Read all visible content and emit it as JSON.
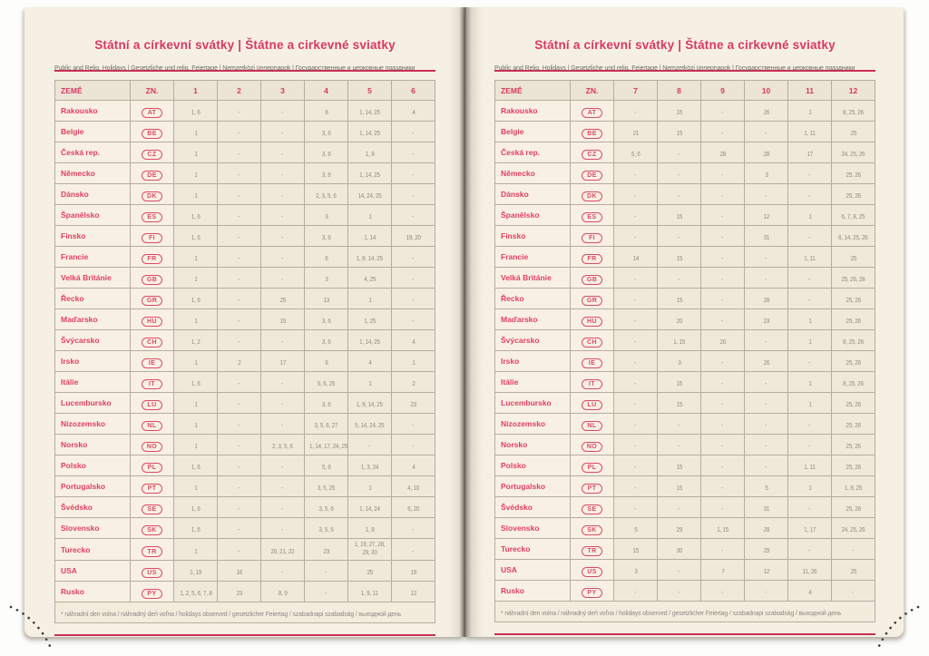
{
  "shared": {
    "title": "Státní a církevní svátky | Štátne a cirkevné sviatky",
    "subtitle": "Public and Relig. Holidays | Gesetzliche und relig. Feiertage | Nemzetközi ünnepnapok | Государственные и церковные праздники",
    "columns": {
      "country": "ZEMĚ",
      "code": "ZN."
    },
    "footnote": "* náhradní den volna / náhradný deň voľna / holidays observed / gesetzlicher Feiertag / szabadnapi szabadság / выходной день"
  },
  "colors": {
    "accent_crimson": "#d93862",
    "rule_red": "#c92f55",
    "page_cream": "#f6f0e4",
    "cell_beige": "#f0e9da",
    "border_gray": "#b6aca0",
    "value_gray": "#8f897f",
    "corner_dots": "#3c3b38"
  },
  "left_page": {
    "months": [
      "1",
      "2",
      "3",
      "4",
      "5",
      "6"
    ],
    "rows": [
      {
        "country": "Rakousko",
        "code": "AT",
        "values": [
          "1, 6",
          "-",
          "-",
          "6",
          "1, 14, 25",
          "4"
        ]
      },
      {
        "country": "Belgie",
        "code": "BE",
        "values": [
          "1",
          "-",
          "-",
          "3, 6",
          "1, 14, 25",
          "-"
        ]
      },
      {
        "country": "Česká rep.",
        "code": "CZ",
        "values": [
          "1",
          "-",
          "-",
          "3, 6",
          "1, 8",
          "-"
        ]
      },
      {
        "country": "Německo",
        "code": "DE",
        "values": [
          "1",
          "-",
          "-",
          "3, 6",
          "1, 14, 25",
          "-"
        ]
      },
      {
        "country": "Dánsko",
        "code": "DK",
        "values": [
          "1",
          "-",
          "-",
          "2, 3, 5, 6",
          "14, 24, 25",
          "-"
        ]
      },
      {
        "country": "Španělsko",
        "code": "ES",
        "values": [
          "1, 6",
          "-",
          "-",
          "3",
          "1",
          "-"
        ]
      },
      {
        "country": "Finsko",
        "code": "FI",
        "values": [
          "1, 6",
          "-",
          "-",
          "3, 6",
          "1, 14",
          "19, 20"
        ]
      },
      {
        "country": "Francie",
        "code": "FR",
        "values": [
          "1",
          "-",
          "-",
          "6",
          "1, 8, 14, 25",
          "-"
        ]
      },
      {
        "country": "Velká Británie",
        "code": "GB",
        "values": [
          "1",
          "-",
          "-",
          "3",
          "4, 25",
          "-"
        ]
      },
      {
        "country": "Řecko",
        "code": "GR",
        "values": [
          "1, 6",
          "-",
          "25",
          "13",
          "1",
          "-"
        ]
      },
      {
        "country": "Maďarsko",
        "code": "HU",
        "values": [
          "1",
          "-",
          "15",
          "3, 6",
          "1, 25",
          "-"
        ]
      },
      {
        "country": "Švýcarsko",
        "code": "CH",
        "values": [
          "1, 2",
          "-",
          "-",
          "3, 6",
          "1, 14, 25",
          "4"
        ]
      },
      {
        "country": "Irsko",
        "code": "IE",
        "values": [
          "1",
          "2",
          "17",
          "6",
          "4",
          "1"
        ]
      },
      {
        "country": "Itálie",
        "code": "IT",
        "values": [
          "1, 6",
          "-",
          "-",
          "5, 6, 25",
          "1",
          "2"
        ]
      },
      {
        "country": "Lucembursko",
        "code": "LU",
        "values": [
          "1",
          "-",
          "-",
          "3, 6",
          "1, 9, 14, 25",
          "23"
        ]
      },
      {
        "country": "Nizozemsko",
        "code": "NL",
        "values": [
          "1",
          "-",
          "-",
          "3, 5, 6, 27",
          "5, 14, 24, 25",
          "-"
        ]
      },
      {
        "country": "Norsko",
        "code": "NO",
        "values": [
          "1",
          "-",
          "2, 3, 5, 6",
          "1, 14, 17, 24, 25",
          "-",
          "-"
        ]
      },
      {
        "country": "Polsko",
        "code": "PL",
        "values": [
          "1, 6",
          "-",
          "-",
          "5, 6",
          "1, 3, 24",
          "4"
        ]
      },
      {
        "country": "Portugalsko",
        "code": "PT",
        "values": [
          "1",
          "-",
          "-",
          "3, 5, 25",
          "1",
          "4, 10"
        ]
      },
      {
        "country": "Švédsko",
        "code": "SE",
        "values": [
          "1, 6",
          "-",
          "-",
          "3, 5, 6",
          "1, 14, 24",
          "6, 20"
        ]
      },
      {
        "country": "Slovensko",
        "code": "SK",
        "values": [
          "1, 6",
          "-",
          "-",
          "3, 5, 6",
          "1, 8",
          "-"
        ]
      },
      {
        "country": "Turecko",
        "code": "TR",
        "values": [
          "1",
          "-",
          "20, 21, 22",
          "23",
          "1, 19, 27, 28, 29, 30",
          "-"
        ]
      },
      {
        "country": "USA",
        "code": "US",
        "values": [
          "1, 19",
          "16",
          "-",
          "-",
          "25",
          "19"
        ]
      },
      {
        "country": "Rusko",
        "code": "PY",
        "values": [
          "1, 2, 5, 6, 7, 8",
          "23",
          "8, 9",
          "-",
          "1, 9, 11",
          "12"
        ]
      }
    ]
  },
  "right_page": {
    "months": [
      "7",
      "8",
      "9",
      "10",
      "11",
      "12"
    ],
    "rows": [
      {
        "country": "Rakousko",
        "code": "AT",
        "values": [
          "-",
          "15",
          "-",
          "26",
          "1",
          "8, 25, 26"
        ]
      },
      {
        "country": "Belgie",
        "code": "BE",
        "values": [
          "21",
          "15",
          "-",
          "-",
          "1, 11",
          "25"
        ]
      },
      {
        "country": "Česká rep.",
        "code": "CZ",
        "values": [
          "5, 6",
          "-",
          "28",
          "28",
          "17",
          "24, 25, 26"
        ]
      },
      {
        "country": "Německo",
        "code": "DE",
        "values": [
          "-",
          "-",
          "-",
          "3",
          "-",
          "25, 26"
        ]
      },
      {
        "country": "Dánsko",
        "code": "DK",
        "values": [
          "-",
          "-",
          "-",
          "-",
          "-",
          "25, 26"
        ]
      },
      {
        "country": "Španělsko",
        "code": "ES",
        "values": [
          "-",
          "15",
          "-",
          "12",
          "1",
          "6, 7, 8, 25"
        ]
      },
      {
        "country": "Finsko",
        "code": "FI",
        "values": [
          "-",
          "-",
          "-",
          "31",
          "-",
          "6, 14, 25, 26"
        ]
      },
      {
        "country": "Francie",
        "code": "FR",
        "values": [
          "14",
          "15",
          "-",
          "-",
          "1, 11",
          "25"
        ]
      },
      {
        "country": "Velká Británie",
        "code": "GB",
        "values": [
          "-",
          "-",
          "-",
          "-",
          "-",
          "25, 26, 28"
        ]
      },
      {
        "country": "Řecko",
        "code": "GR",
        "values": [
          "-",
          "15",
          "-",
          "28",
          "-",
          "25, 26"
        ]
      },
      {
        "country": "Maďarsko",
        "code": "HU",
        "values": [
          "-",
          "20",
          "-",
          "23",
          "1",
          "25, 26"
        ]
      },
      {
        "country": "Švýcarsko",
        "code": "CH",
        "values": [
          "-",
          "1, 15",
          "20",
          "-",
          "1",
          "8, 25, 26"
        ]
      },
      {
        "country": "Irsko",
        "code": "IE",
        "values": [
          "-",
          "3",
          "-",
          "26",
          "-",
          "25, 26"
        ]
      },
      {
        "country": "Itálie",
        "code": "IT",
        "values": [
          "-",
          "15",
          "-",
          "-",
          "1",
          "8, 25, 26"
        ]
      },
      {
        "country": "Lucembursko",
        "code": "LU",
        "values": [
          "-",
          "15",
          "-",
          "-",
          "1",
          "25, 26"
        ]
      },
      {
        "country": "Nizozemsko",
        "code": "NL",
        "values": [
          "-",
          "-",
          "-",
          "-",
          "-",
          "25, 26"
        ]
      },
      {
        "country": "Norsko",
        "code": "NO",
        "values": [
          "-",
          "-",
          "-",
          "-",
          "-",
          "25, 26"
        ]
      },
      {
        "country": "Polsko",
        "code": "PL",
        "values": [
          "-",
          "15",
          "-",
          "-",
          "1, 11",
          "25, 26"
        ]
      },
      {
        "country": "Portugalsko",
        "code": "PT",
        "values": [
          "-",
          "15",
          "-",
          "5",
          "1",
          "1, 8, 25"
        ]
      },
      {
        "country": "Švédsko",
        "code": "SE",
        "values": [
          "-",
          "-",
          "-",
          "31",
          "-",
          "25, 26"
        ]
      },
      {
        "country": "Slovensko",
        "code": "SK",
        "values": [
          "5",
          "29",
          "1, 15",
          "28",
          "1, 17",
          "24, 25, 26"
        ]
      },
      {
        "country": "Turecko",
        "code": "TR",
        "values": [
          "15",
          "30",
          "-",
          "29",
          "-",
          "-"
        ]
      },
      {
        "country": "USA",
        "code": "US",
        "values": [
          "3",
          "-",
          "7",
          "12",
          "11, 26",
          "25"
        ]
      },
      {
        "country": "Rusko",
        "code": "PY",
        "values": [
          "-",
          "-",
          "-",
          "-",
          "4",
          "-"
        ]
      }
    ]
  }
}
